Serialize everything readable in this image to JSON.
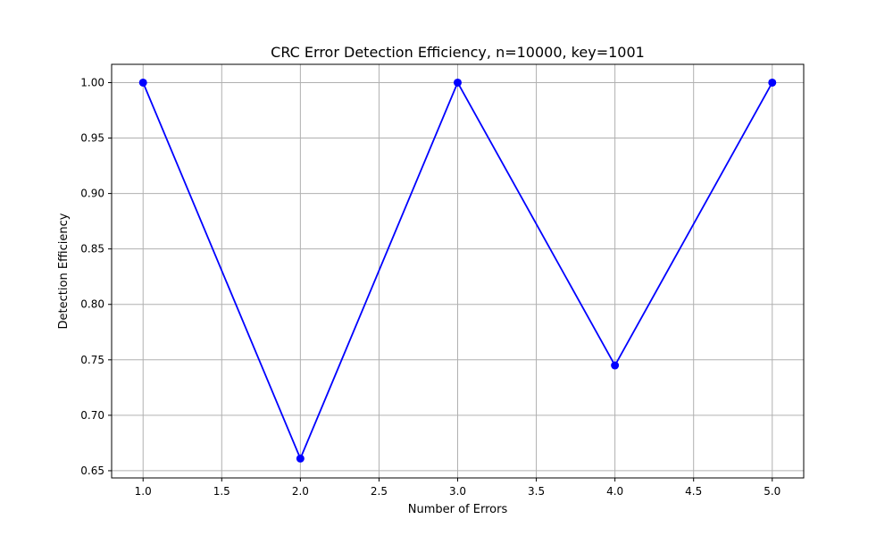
{
  "chart_data": {
    "type": "line",
    "title": "CRC Error Detection Efficiency, n=10000, key=1001",
    "xlabel": "Number of Errors",
    "ylabel": "Detection Efficiency",
    "x": [
      1,
      2,
      3,
      4,
      5
    ],
    "series": [
      {
        "values": [
          1.0,
          0.661,
          1.0,
          0.745,
          1.0
        ],
        "color": "#0000ff",
        "marker": "circle"
      }
    ],
    "xlim": [
      0.8,
      5.2
    ],
    "ylim": [
      0.6435,
      1.0165
    ],
    "xticks": [
      "1.0",
      "1.5",
      "2.0",
      "2.5",
      "3.0",
      "3.5",
      "4.0",
      "4.5",
      "5.0"
    ],
    "yticks": [
      "0.65",
      "0.70",
      "0.75",
      "0.80",
      "0.85",
      "0.90",
      "0.95",
      "1.00"
    ],
    "grid": true,
    "colors": {
      "grid": "#b0b0b0",
      "axis": "#000000",
      "line": "#0000ff"
    }
  }
}
